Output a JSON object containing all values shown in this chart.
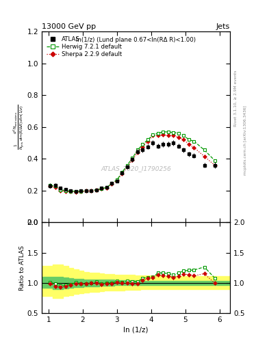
{
  "title_left": "13000 GeV pp",
  "title_right": "Jets",
  "inner_title": "ln(1/z) (Lund plane 0.67<ln(RΔ R)<1.00)",
  "watermark": "ATLAS_2020_I1790256",
  "right_label_top": "Rivet 3.1.10, ≥ 2.9M events",
  "right_label_bottom": "mcplots.cern.ch [arXiv:1306.3436]",
  "ylabel_main": "$\\frac{1}{N_\\mathrm{jets}}\\frac{d^2 N_\\mathrm{emissions}}{d\\ln(R/\\Delta R)\\,d\\ln(1/z)}$",
  "ylabel_ratio": "Ratio to ATLAS",
  "xlabel": "ln (1/z)",
  "xlim": [
    0.8,
    6.3
  ],
  "ylim_main": [
    0.0,
    1.2
  ],
  "ylim_ratio": [
    0.5,
    2.0
  ],
  "yticks_main": [
    0.0,
    0.2,
    0.4,
    0.6,
    0.8,
    1.0,
    1.2
  ],
  "yticks_ratio": [
    0.5,
    1.0,
    1.5,
    2.0
  ],
  "x_ticks": [
    1,
    2,
    3,
    4,
    5,
    6
  ],
  "atlas_x": [
    1.05,
    1.2,
    1.35,
    1.5,
    1.65,
    1.8,
    1.95,
    2.1,
    2.25,
    2.4,
    2.55,
    2.7,
    2.85,
    3.0,
    3.15,
    3.3,
    3.45,
    3.6,
    3.75,
    3.9,
    4.05,
    4.2,
    4.35,
    4.5,
    4.65,
    4.8,
    4.95,
    5.1,
    5.25,
    5.55,
    5.85
  ],
  "atlas_y": [
    0.23,
    0.232,
    0.215,
    0.208,
    0.2,
    0.195,
    0.198,
    0.2,
    0.2,
    0.202,
    0.215,
    0.22,
    0.245,
    0.26,
    0.31,
    0.35,
    0.395,
    0.445,
    0.455,
    0.475,
    0.5,
    0.48,
    0.49,
    0.49,
    0.5,
    0.48,
    0.455,
    0.43,
    0.42,
    0.36,
    0.36
  ],
  "atlas_yerr": [
    0.015,
    0.013,
    0.011,
    0.01,
    0.009,
    0.009,
    0.009,
    0.009,
    0.009,
    0.009,
    0.01,
    0.01,
    0.011,
    0.011,
    0.013,
    0.014,
    0.015,
    0.016,
    0.016,
    0.016,
    0.017,
    0.016,
    0.017,
    0.017,
    0.017,
    0.016,
    0.016,
    0.016,
    0.015,
    0.015,
    0.018
  ],
  "herwig_x": [
    1.05,
    1.2,
    1.35,
    1.5,
    1.65,
    1.8,
    1.95,
    2.1,
    2.25,
    2.4,
    2.55,
    2.7,
    2.85,
    3.0,
    3.15,
    3.3,
    3.45,
    3.6,
    3.75,
    3.9,
    4.05,
    4.2,
    4.35,
    4.5,
    4.65,
    4.8,
    4.95,
    5.1,
    5.25,
    5.55,
    5.85
  ],
  "herwig_y": [
    0.232,
    0.228,
    0.205,
    0.2,
    0.196,
    0.196,
    0.196,
    0.198,
    0.2,
    0.205,
    0.212,
    0.22,
    0.245,
    0.268,
    0.315,
    0.36,
    0.405,
    0.455,
    0.49,
    0.52,
    0.55,
    0.56,
    0.57,
    0.568,
    0.565,
    0.56,
    0.545,
    0.52,
    0.51,
    0.455,
    0.39
  ],
  "sherpa_x": [
    1.05,
    1.2,
    1.35,
    1.5,
    1.65,
    1.8,
    1.95,
    2.1,
    2.25,
    2.4,
    2.55,
    2.7,
    2.85,
    3.0,
    3.15,
    3.3,
    3.45,
    3.6,
    3.75,
    3.9,
    4.05,
    4.2,
    4.35,
    4.5,
    4.65,
    4.8,
    4.95,
    5.1,
    5.25,
    5.55,
    5.85
  ],
  "sherpa_y": [
    0.228,
    0.22,
    0.2,
    0.196,
    0.193,
    0.192,
    0.195,
    0.197,
    0.2,
    0.202,
    0.21,
    0.218,
    0.242,
    0.262,
    0.308,
    0.348,
    0.392,
    0.44,
    0.475,
    0.51,
    0.545,
    0.545,
    0.55,
    0.545,
    0.545,
    0.535,
    0.52,
    0.49,
    0.47,
    0.415,
    0.36
  ],
  "atlas_color": "#000000",
  "herwig_color": "#009900",
  "sherpa_color": "#cc0000",
  "herwig_ratio": [
    1.008,
    0.985,
    0.954,
    0.96,
    0.978,
    1.006,
    0.991,
    0.992,
    1.0,
    1.017,
    0.987,
    1.0,
    1.0,
    1.03,
    1.016,
    1.028,
    1.025,
    1.022,
    1.077,
    1.095,
    1.1,
    1.167,
    1.163,
    1.159,
    1.13,
    1.167,
    1.198,
    1.209,
    1.214,
    1.264,
    1.083
  ],
  "sherpa_ratio": [
    0.993,
    0.948,
    0.931,
    0.943,
    0.964,
    0.985,
    0.985,
    0.985,
    1.0,
    1.0,
    0.977,
    0.991,
    0.988,
    1.008,
    0.994,
    0.994,
    0.992,
    0.989,
    1.044,
    1.074,
    1.09,
    1.135,
    1.122,
    1.112,
    1.09,
    1.115,
    1.143,
    1.14,
    1.119,
    1.153,
    1.0
  ],
  "green_band_lo": [
    0.92,
    0.9,
    0.9,
    0.91,
    0.92,
    0.93,
    0.93,
    0.94,
    0.94,
    0.94,
    0.95,
    0.95,
    0.95,
    0.96,
    0.96,
    0.96,
    0.96,
    0.97,
    0.97,
    0.97,
    0.97,
    0.97,
    0.97,
    0.97,
    0.97,
    0.97,
    0.97,
    0.97,
    0.97,
    0.97,
    0.97
  ],
  "green_band_hi": [
    1.1,
    1.1,
    1.1,
    1.09,
    1.08,
    1.07,
    1.07,
    1.06,
    1.06,
    1.06,
    1.05,
    1.05,
    1.05,
    1.04,
    1.04,
    1.04,
    1.04,
    1.03,
    1.03,
    1.03,
    1.03,
    1.03,
    1.03,
    1.03,
    1.03,
    1.03,
    1.03,
    1.03,
    1.03,
    1.03,
    1.03
  ],
  "yellow_band_lo": [
    0.78,
    0.75,
    0.75,
    0.78,
    0.8,
    0.82,
    0.83,
    0.84,
    0.85,
    0.85,
    0.86,
    0.87,
    0.87,
    0.88,
    0.88,
    0.89,
    0.89,
    0.89,
    0.9,
    0.9,
    0.9,
    0.9,
    0.9,
    0.9,
    0.9,
    0.9,
    0.9,
    0.9,
    0.9,
    0.9,
    0.9
  ],
  "yellow_band_hi": [
    1.28,
    1.3,
    1.3,
    1.28,
    1.25,
    1.22,
    1.2,
    1.18,
    1.17,
    1.17,
    1.16,
    1.15,
    1.15,
    1.14,
    1.13,
    1.13,
    1.13,
    1.12,
    1.12,
    1.12,
    1.12,
    1.12,
    1.11,
    1.11,
    1.11,
    1.11,
    1.11,
    1.11,
    1.11,
    1.11,
    1.11
  ]
}
